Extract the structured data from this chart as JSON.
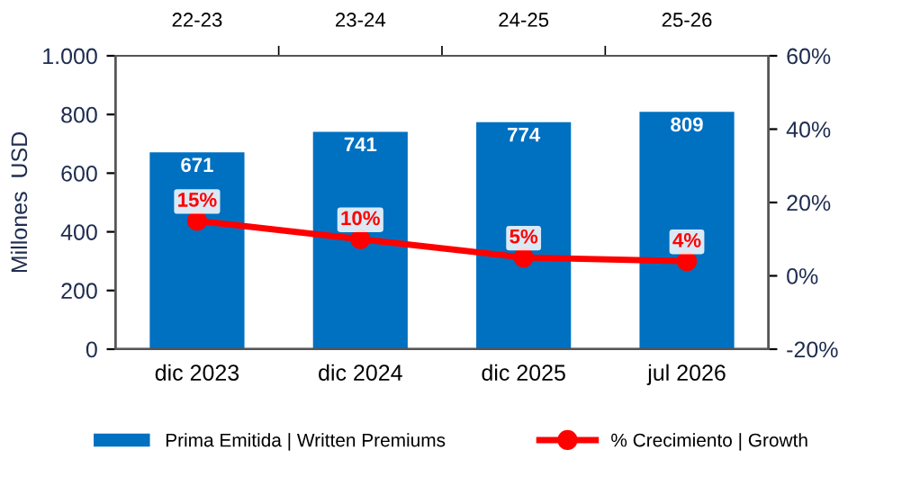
{
  "chart_data": {
    "type": "bar",
    "categories": [
      "dic 2023",
      "dic 2024",
      "dic 2025",
      "jul 2026"
    ],
    "ylabel": "Millones  USD",
    "ylim": [
      0,
      1000
    ],
    "yticks": [
      0,
      200,
      400,
      600,
      800,
      {
        "value": 1000,
        "label": "1.000"
      }
    ],
    "y2lim": [
      -20,
      60
    ],
    "y2ticks": [
      {
        "value": -20,
        "label": "-20%"
      },
      {
        "value": 0,
        "label": "0%"
      },
      {
        "value": 20,
        "label": "20%"
      },
      {
        "value": 40,
        "label": "40%"
      },
      {
        "value": 60,
        "label": "60%"
      }
    ],
    "annotations": [
      "22-23",
      "23-24",
      "24-25",
      "25-26"
    ],
    "series": [
      {
        "name": "Prima Emitida | Written Premiums",
        "color": "#0070c0",
        "values": [
          671,
          741,
          774,
          809
        ],
        "value_labels": [
          "671",
          "741",
          "774",
          "809"
        ]
      },
      {
        "name": "% Crecimiento | Growth",
        "type": "line",
        "axis": "y2",
        "color": "#ff0000",
        "marker": "circle",
        "values": [
          15,
          10,
          5,
          4
        ],
        "value_labels": [
          "15%",
          "10%",
          "5%",
          "4%"
        ]
      }
    ],
    "legend": "bottom",
    "grid": false
  }
}
